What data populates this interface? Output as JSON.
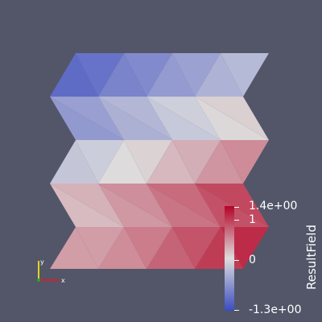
{
  "colorbar": {
    "title": "ResultField",
    "max_label": "1.4e+00",
    "min_label": "-1.3e+00",
    "tick_1": "1",
    "tick_0": "0",
    "range": [
      -1.3,
      1.4
    ]
  },
  "colors": {
    "background": "#525668",
    "colormap_low": "#3b4cc0",
    "colormap_mid": "#dddddd",
    "colormap_high": "#b40426"
  },
  "axes": {
    "x_label": "x",
    "y_label": "y"
  }
}
